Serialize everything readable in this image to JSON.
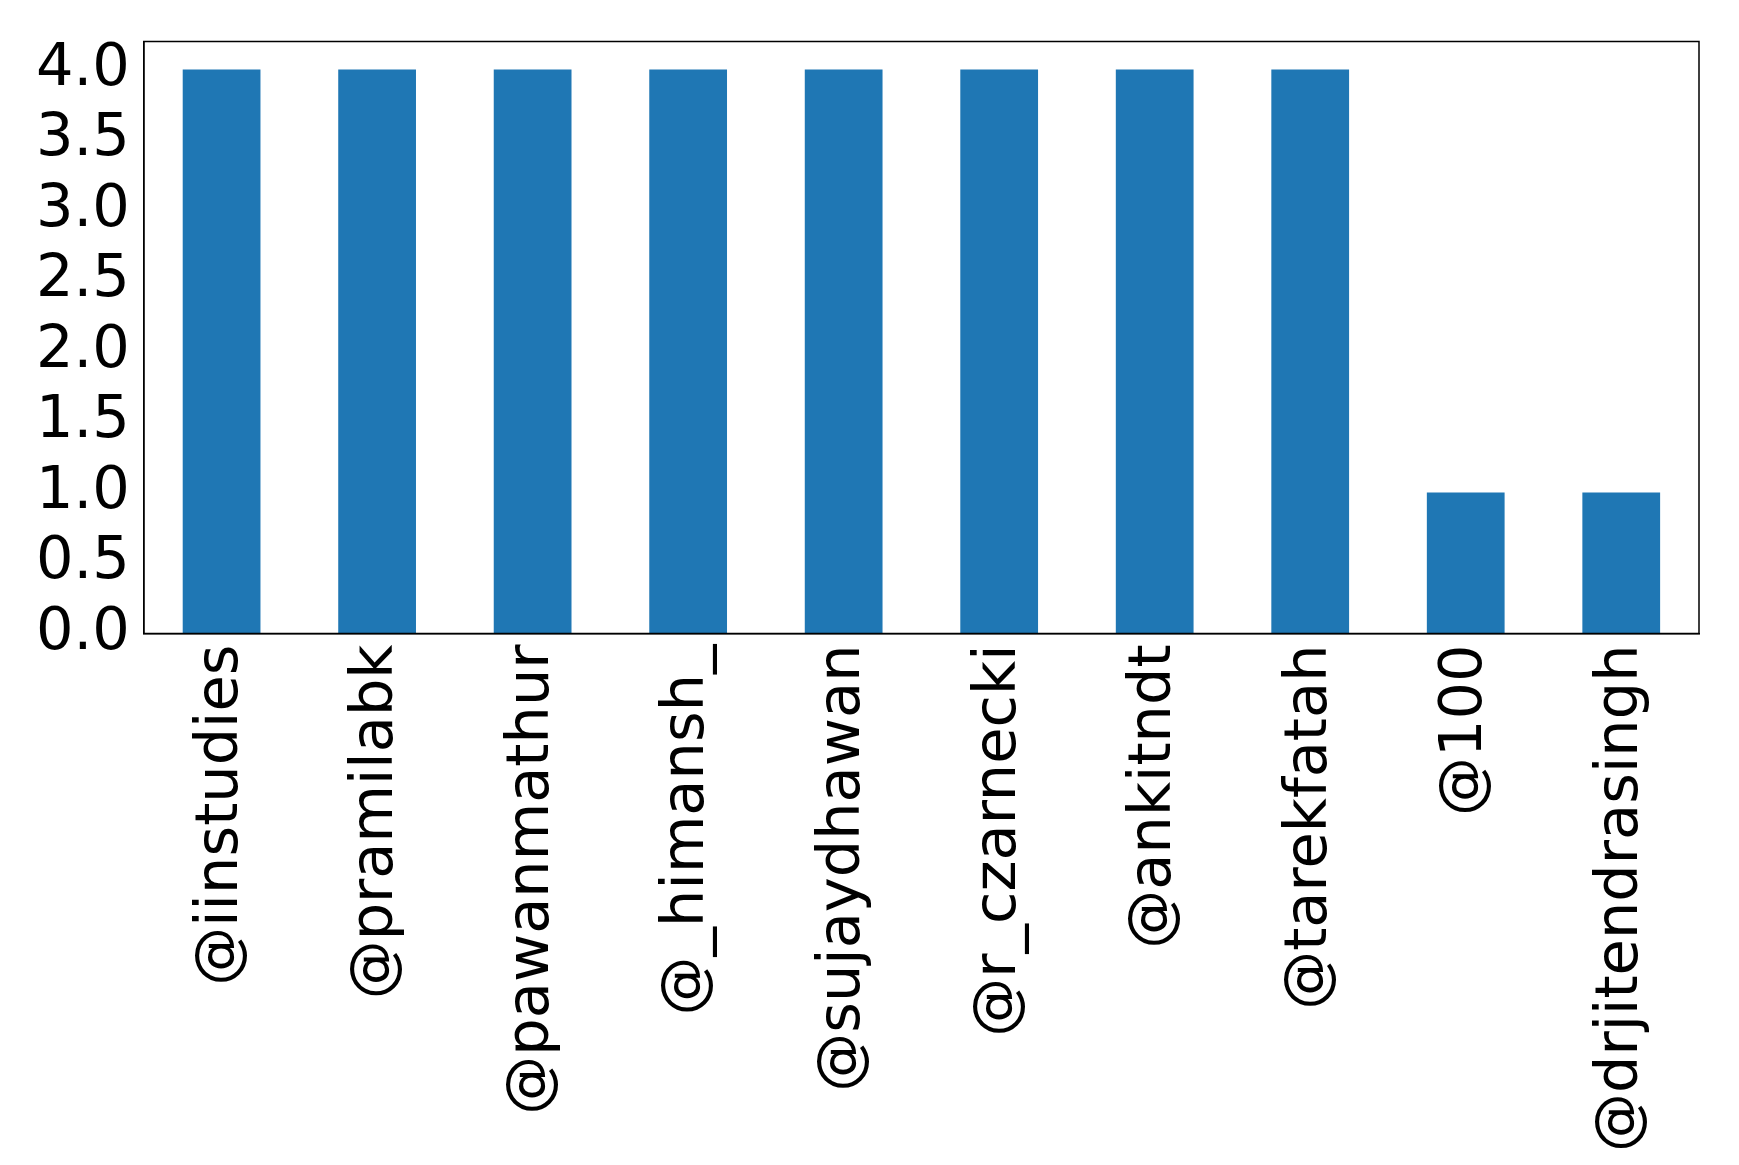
{
  "chart_data": {
    "type": "bar",
    "categories": [
      "@iinstudies",
      "@pramilabk",
      "@pawanmathur",
      "@_himansh_",
      "@sujaydhawan",
      "@r_czarnecki",
      "@ankitndt",
      "@tarekfatah",
      "@100",
      "@drjitendrasingh"
    ],
    "values": [
      4,
      4,
      4,
      4,
      4,
      4,
      4,
      4,
      1,
      1
    ],
    "color": "#1f77b4",
    "ylim": [
      0,
      4.2
    ],
    "yticks": [
      {
        "value": 0,
        "label": "0.0"
      },
      {
        "value": 0.5,
        "label": "0.5"
      },
      {
        "value": 1,
        "label": "1.0"
      },
      {
        "value": 1.5,
        "label": "1.5"
      },
      {
        "value": 2,
        "label": "2.0"
      },
      {
        "value": 2.5,
        "label": "2.5"
      },
      {
        "value": 3,
        "label": "3.0"
      },
      {
        "value": 3.5,
        "label": "3.5"
      },
      {
        "value": 4,
        "label": "4.0"
      }
    ],
    "grid": false,
    "legend": false
  }
}
